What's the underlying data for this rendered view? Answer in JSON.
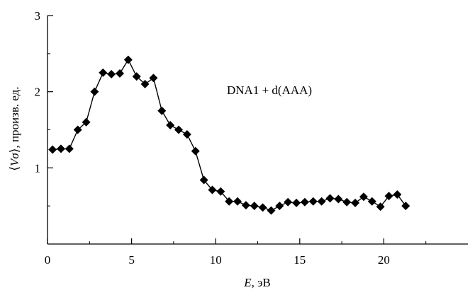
{
  "chart_data": {
    "type": "line",
    "title": "",
    "xlabel": "E, эВ",
    "xlabel_var": "E",
    "xlabel_unit": ", эВ",
    "ylabel": "⟨Vσ⟩, произв. ед.",
    "ylabel_open": "⟨",
    "ylabel_var": "Vσ",
    "ylabel_rest": "⟩, произв. ед.",
    "xlim": [
      0,
      25
    ],
    "ylim": [
      0,
      3
    ],
    "xticks": [
      0,
      5,
      10,
      15,
      20
    ],
    "yticks": [
      1,
      2,
      3
    ],
    "grid": false,
    "marker": "diamond",
    "color": "#000000",
    "annotation": "DNA1 + d(AAA)",
    "series": [
      {
        "x": [
          0.3,
          0.8,
          1.3,
          1.8,
          2.3,
          2.8,
          3.3,
          3.8,
          4.3,
          4.8,
          5.3,
          5.8,
          6.3,
          6.8,
          7.3,
          7.8,
          8.3,
          8.8,
          9.3,
          9.8,
          10.3,
          10.8,
          11.3,
          11.8,
          12.3,
          12.8,
          13.3,
          13.8,
          14.3,
          14.8,
          15.3,
          15.8,
          16.3,
          16.8,
          17.3,
          17.8,
          18.3,
          18.8,
          19.3,
          19.8,
          20.3,
          20.8,
          21.3
        ],
        "y": [
          1.24,
          1.25,
          1.25,
          1.5,
          1.6,
          2.0,
          2.25,
          2.23,
          2.24,
          2.42,
          2.2,
          2.1,
          2.18,
          1.75,
          1.56,
          1.5,
          1.44,
          1.22,
          0.84,
          0.71,
          0.69,
          0.56,
          0.56,
          0.51,
          0.5,
          0.48,
          0.44,
          0.5,
          0.55,
          0.54,
          0.55,
          0.56,
          0.56,
          0.6,
          0.59,
          0.55,
          0.54,
          0.62,
          0.56,
          0.49,
          0.63,
          0.65,
          0.5
        ]
      }
    ]
  }
}
